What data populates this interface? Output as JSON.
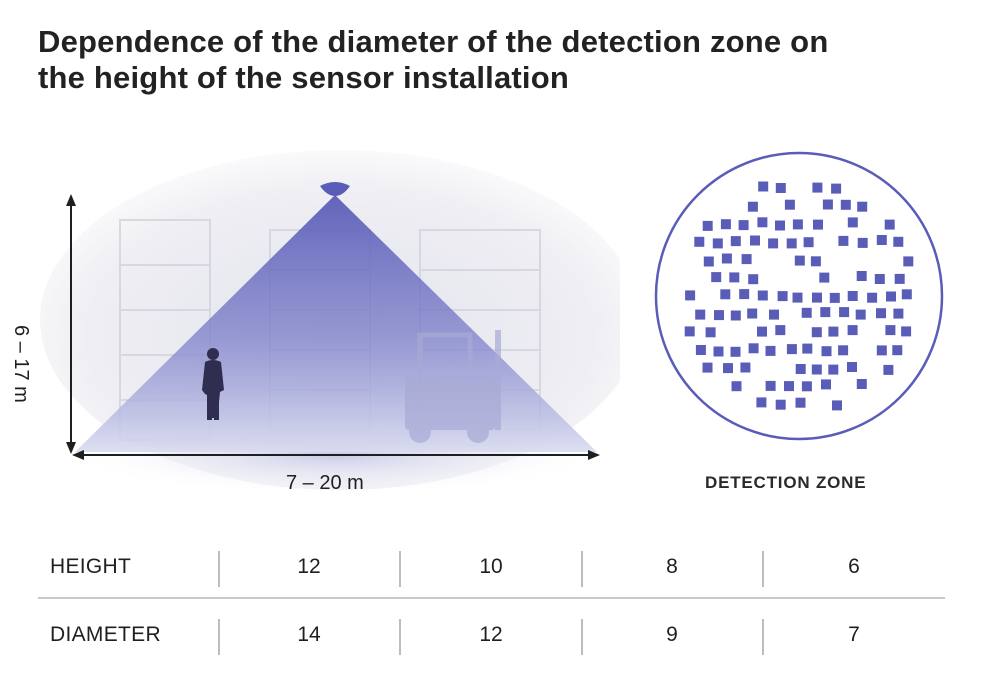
{
  "title": {
    "line1": "Dependence of the diameter of the detection zone on",
    "line2": "the height of the sensor installation"
  },
  "diagram": {
    "height_label": "6 – 17 m",
    "width_label": "7 – 20 m",
    "cone_color": "#5a5db8",
    "sensor_color": "#5a5db8"
  },
  "detection_zone": {
    "caption": "DETECTION ZONE",
    "circle_color": "#5a5db8",
    "square_color": "#5a5db8"
  },
  "table": {
    "row_headers": [
      "HEIGHT",
      "DIAMETER"
    ],
    "height_values": [
      "12",
      "10",
      "8",
      "6"
    ],
    "diameter_values": [
      "14",
      "12",
      "9",
      "7"
    ]
  }
}
